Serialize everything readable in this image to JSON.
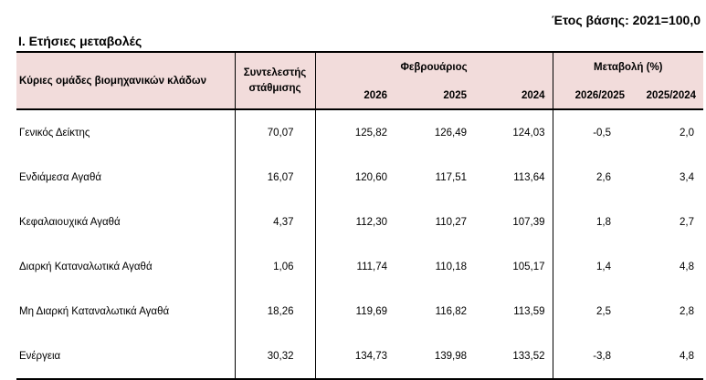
{
  "base_year": "Έτος βάσης: 2021=100,0",
  "section_title": "I. Ετήσιες μεταβολές",
  "header": {
    "row_label": "Κύριες ομάδες βιομηχανικών κλάδων",
    "weight_line1": "Συντελεστής",
    "weight_line2": "στάθμισης",
    "month": "Φεβρουάριος",
    "change": "Μεταβολή (%)",
    "years": [
      "2026",
      "2025",
      "2024"
    ],
    "changes": [
      "2026/2025",
      "2025/2024"
    ]
  },
  "rows": [
    {
      "name": "Γενικός Δείκτης",
      "weight": "70,07",
      "v2026": "125,82",
      "v2025": "126,49",
      "v2024": "124,03",
      "c1": "-0,5",
      "c2": "2,0"
    },
    {
      "name": "Ενδιάμεσα Αγαθά",
      "weight": "16,07",
      "v2026": "120,60",
      "v2025": "117,51",
      "v2024": "113,64",
      "c1": "2,6",
      "c2": "3,4"
    },
    {
      "name": "Κεφαλαιουχικά Αγαθά",
      "weight": "4,37",
      "v2026": "112,30",
      "v2025": "110,27",
      "v2024": "107,39",
      "c1": "1,8",
      "c2": "2,7"
    },
    {
      "name": "Διαρκή Καταναλωτικά Αγαθά",
      "weight": "1,06",
      "v2026": "111,74",
      "v2025": "110,18",
      "v2024": "105,17",
      "c1": "1,4",
      "c2": "4,8"
    },
    {
      "name": "Μη Διαρκή Καταναλωτικά Αγαθά",
      "weight": "18,26",
      "v2026": "119,69",
      "v2025": "116,82",
      "v2024": "113,59",
      "c1": "2,5",
      "c2": "2,8"
    },
    {
      "name": "Ενέργεια",
      "weight": "30,32",
      "v2026": "134,73",
      "v2025": "139,98",
      "v2024": "133,52",
      "c1": "-3,8",
      "c2": "4,8"
    }
  ]
}
